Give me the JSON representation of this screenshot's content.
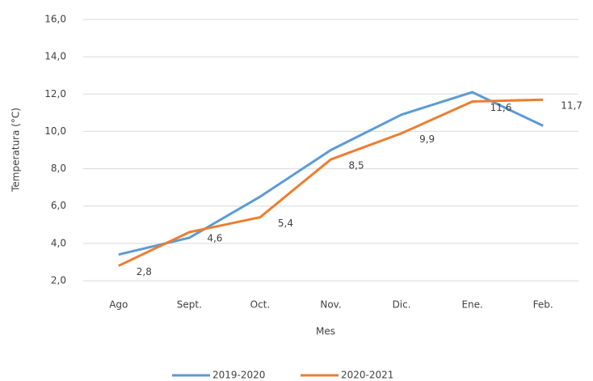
{
  "chart_data": {
    "type": "line",
    "categories": [
      "Ago",
      "Sept.",
      "Oct.",
      "Nov.",
      "Dic.",
      "Ene.",
      "Feb."
    ],
    "series": [
      {
        "name": "2019-2020",
        "color": "#5b9bd5",
        "values": [
          3.4,
          4.3,
          6.5,
          9.0,
          10.9,
          12.1,
          10.3
        ]
      },
      {
        "name": "2020-2021",
        "color": "#ed7d31",
        "values": [
          2.8,
          4.6,
          5.4,
          8.5,
          9.9,
          11.6,
          11.7
        ],
        "value_labels": [
          "2,8",
          "4,6",
          "5,4",
          "8,5",
          "9,9",
          "11,6",
          "11,7"
        ]
      }
    ],
    "ylim": [
      2,
      16
    ],
    "yticks": [
      {
        "value": 2,
        "label": "2,0"
      },
      {
        "value": 4,
        "label": "4,0"
      },
      {
        "value": 6,
        "label": "6,0"
      },
      {
        "value": 8,
        "label": "8,0"
      },
      {
        "value": 10,
        "label": "10,0"
      },
      {
        "value": 12,
        "label": "12,0"
      },
      {
        "value": 14,
        "label": "14,0"
      },
      {
        "value": 16,
        "label": "16,0"
      }
    ],
    "ylabel": "Temperatura (°C)",
    "xlabel": "Mes",
    "grid": true,
    "legend": "bottom"
  }
}
